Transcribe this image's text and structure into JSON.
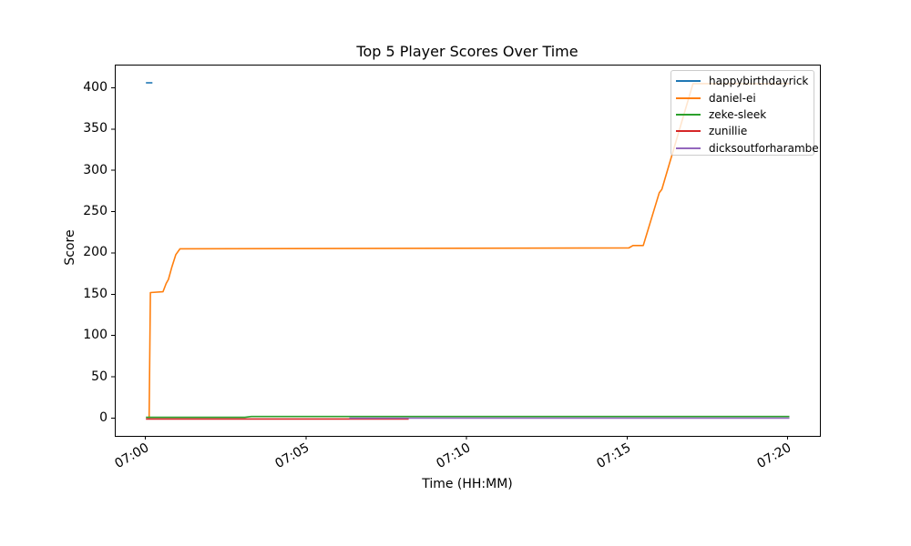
{
  "figure": {
    "background": "#ffffff",
    "text_color": "#000000",
    "spine_color": "#000000",
    "legend_border_color": "#cccccc",
    "legend_background": "rgba(255,255,255,0.8)"
  },
  "chart_data": {
    "type": "line",
    "title": "Top 5 Player Scores Over Time",
    "xlabel": "Time (HH:MM)",
    "ylabel": "Score",
    "x_unit": "minutes after 07:00",
    "grid": false,
    "legend_position": "upper right",
    "xlim_minutes": [
      -0.95,
      21.0
    ],
    "ylim": [
      -21.5,
      428
    ],
    "xticks": [
      {
        "m": 0,
        "label": "07:00"
      },
      {
        "m": 5,
        "label": "07:05"
      },
      {
        "m": 10,
        "label": "07:10"
      },
      {
        "m": 15,
        "label": "07:15"
      },
      {
        "m": 20,
        "label": "07:20"
      }
    ],
    "yticks": [
      {
        "v": 0,
        "label": "0"
      },
      {
        "v": 50,
        "label": "50"
      },
      {
        "v": 100,
        "label": "100"
      },
      {
        "v": 150,
        "label": "150"
      },
      {
        "v": 200,
        "label": "200"
      },
      {
        "v": 250,
        "label": "250"
      },
      {
        "v": 300,
        "label": "300"
      },
      {
        "v": 350,
        "label": "350"
      },
      {
        "v": 400,
        "label": "400"
      }
    ],
    "series": [
      {
        "name": "happybirthdayrick",
        "color": "#1f77b4",
        "points": [
          [
            0.02,
            406
          ],
          [
            0.22,
            406
          ]
        ]
      },
      {
        "name": "daniel-ei",
        "color": "#ff7f0e",
        "points": [
          [
            0.12,
            0
          ],
          [
            0.16,
            152
          ],
          [
            0.55,
            153
          ],
          [
            0.65,
            163
          ],
          [
            0.72,
            168
          ],
          [
            0.82,
            182
          ],
          [
            0.95,
            198
          ],
          [
            1.08,
            205
          ],
          [
            15.05,
            206
          ],
          [
            15.18,
            209
          ],
          [
            15.5,
            209
          ],
          [
            16.0,
            273
          ],
          [
            16.08,
            277
          ],
          [
            17.05,
            405
          ],
          [
            20.05,
            405
          ]
        ]
      },
      {
        "name": "zeke-sleek",
        "color": "#2ca02c",
        "points": [
          [
            0.02,
            1
          ],
          [
            3.1,
            1
          ],
          [
            3.3,
            2
          ],
          [
            20.05,
            2
          ]
        ]
      },
      {
        "name": "zunillie",
        "color": "#d62728",
        "points": [
          [
            0.02,
            -1
          ],
          [
            8.2,
            -1
          ]
        ]
      },
      {
        "name": "dicksoutforharambe",
        "color": "#9467bd",
        "points": [
          [
            6.35,
            0
          ],
          [
            20.05,
            0
          ]
        ]
      }
    ]
  }
}
